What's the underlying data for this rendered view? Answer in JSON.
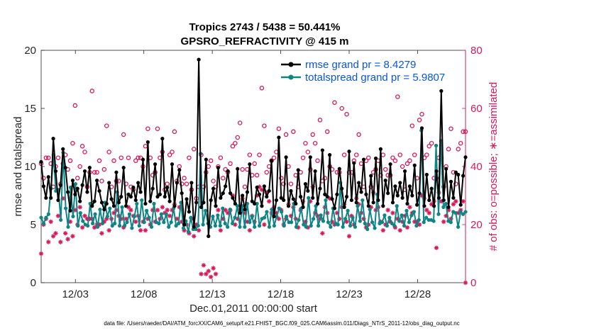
{
  "chart_data": {
    "type": "line",
    "title": "Tropics 2743 / 5438 = 50.441%",
    "subtitle": "GPSRO_REFRACTIVITY @ 415 m",
    "xlabel": "Dec.01,2011 00:00:00 start",
    "ylabel": "rmse and totalspread",
    "ylabel_right": "# of obs: o=possible; ∗=assimilated",
    "footer": "data file: /Users/raeder/DAI/ATM_forcXX/CAM6_setup/f.e21.FHIST_BGC.f09_025.CAM6assim.011/Diags_NTrS_2011-12/obs_diag_output.nc",
    "x_start_day": 0.5,
    "x_end_day": 31.5,
    "xlim": [
      0.5,
      31.5
    ],
    "ylim": [
      0,
      20
    ],
    "ylim_right": [
      0,
      80
    ],
    "x_ticks": [
      {
        "day": 3,
        "label": "12/03"
      },
      {
        "day": 8,
        "label": "12/08"
      },
      {
        "day": 13,
        "label": "12/13"
      },
      {
        "day": 18,
        "label": "12/18"
      },
      {
        "day": 23,
        "label": "12/23"
      },
      {
        "day": 28,
        "label": "12/28"
      }
    ],
    "y_ticks": [
      {
        "value": 0,
        "label": "0"
      },
      {
        "value": 5,
        "label": "5"
      },
      {
        "value": 10,
        "label": "10"
      },
      {
        "value": 15,
        "label": "15"
      },
      {
        "value": 20,
        "label": "20"
      }
    ],
    "y_ticks_right": [
      {
        "value": 0,
        "label": "0"
      },
      {
        "value": 20,
        "label": "20"
      },
      {
        "value": 40,
        "label": "40"
      },
      {
        "value": 60,
        "label": "60"
      },
      {
        "value": 80,
        "label": "80"
      }
    ],
    "legend": {
      "position": "top-right",
      "entries": [
        "rmse grand pr = 8.4279",
        "totalspread grand pr = 5.9807"
      ]
    },
    "colors": {
      "rmse": "#000000",
      "spread": "#0d8585",
      "obs": "#d6195b",
      "legend_text": "#0a55e0"
    },
    "series": [
      {
        "name": "rmse",
        "axis": "left",
        "values": [
          10.4,
          8.3,
          7.3,
          9.1,
          7.3,
          12.4,
          9.6,
          7.1,
          8.4,
          11.5,
          9.9,
          7.8,
          6.2,
          8.8,
          7.6,
          8.1,
          7.0,
          8.4,
          9.6,
          7.8,
          9.9,
          6.6,
          7.0,
          8.8,
          7.9,
          6.9,
          6.3,
          6.8,
          8.6,
          7.2,
          6.6,
          9.5,
          6.9,
          7.4,
          9.9,
          6.6,
          7.6,
          7.4,
          8.2,
          7.1,
          8.6,
          7.8,
          10.6,
          6.8,
          12.1,
          7.0,
          8.1,
          10.2,
          7.4,
          7.6,
          12.4,
          7.4,
          8.2,
          7.0,
          10.2,
          6.6,
          8.6,
          9.7,
          7.7,
          5.0,
          7.2,
          6.1,
          8.6,
          4.8,
          6.9,
          19.2,
          6.5,
          6.9,
          10.6,
          4.0,
          7.1,
          8.1,
          6.6,
          9.9,
          7.3,
          7.7,
          8.3,
          9.6,
          7.7,
          7.3,
          6.8,
          9.8,
          6.0,
          7.5,
          6.3,
          7.8,
          10.2,
          7.0,
          6.8,
          8.2,
          7.6,
          6.6,
          8.3,
          7.4,
          7.9,
          10.5,
          5.7,
          7.1,
          12.5,
          7.3,
          7.1,
          10.8,
          6.6,
          7.9,
          7.2,
          6.8,
          9.7,
          7.4,
          6.5,
          8.5,
          7.9,
          10.8,
          7.3,
          9.6,
          6.8,
          8.1,
          11.4,
          7.6,
          7.4,
          11.0,
          7.2,
          6.4,
          7.6,
          9.8,
          8.1,
          6.5,
          7.4,
          11.3,
          7.1,
          10.3,
          6.9,
          8.6,
          7.8,
          10.6,
          7.6,
          6.6,
          9.2,
          6.9,
          10.7,
          7.1,
          11.5,
          6.6,
          8.8,
          7.7,
          10.2,
          6.9,
          8.3,
          7.5,
          8.6,
          7.3,
          9.6,
          6.8,
          8.3,
          7.5,
          10.1,
          6.7,
          7.7,
          13.3,
          6.6,
          9.3,
          7.1,
          8.1,
          6.6,
          9.6,
          7.3,
          16.5,
          7.1,
          9.8,
          6.5,
          8.7,
          7.3,
          9.5,
          9.3,
          6.7,
          9.2,
          10.8
        ]
      },
      {
        "name": "totalspread",
        "axis": "left",
        "values": [
          5.6,
          5.1,
          5.6,
          5.9,
          8.1,
          11.0,
          7.9,
          8.0,
          5.4,
          11.2,
          6.4,
          4.8,
          8.2,
          5.7,
          8.5,
          4.9,
          6.0,
          5.3,
          5.0,
          4.9,
          6.8,
          5.1,
          5.9,
          4.8,
          6.3,
          5.1,
          6.9,
          5.7,
          6.4,
          4.9,
          5.1,
          7.8,
          4.9,
          6.5,
          4.9,
          5.2,
          5.9,
          4.7,
          5.7,
          6.8,
          4.9,
          7.1,
          5.2,
          6.2,
          5.6,
          4.8,
          6.8,
          5.2,
          5.1,
          5.9,
          5.2,
          5.9,
          4.8,
          5.2,
          6.4,
          4.9,
          5.1,
          6.9,
          4.7,
          5.3,
          4.4,
          5.6,
          4.6,
          4.6,
          4.9,
          11.1,
          5.0,
          6.2,
          5.1,
          4.8,
          5.7,
          4.9,
          5.8,
          4.9,
          6.4,
          5.1,
          4.8,
          6.3,
          5.1,
          5.6,
          6.6,
          4.8,
          6.6,
          4.8,
          6.8,
          5.2,
          5.7,
          4.8,
          6.8,
          4.9,
          5.5,
          5.6,
          6.1,
          4.8,
          6.3,
          4.9,
          5.7,
          6.4,
          6.1,
          4.9,
          5.7,
          5.2,
          5.2,
          6.8,
          4.8,
          5.4,
          6.4,
          5.0,
          4.8,
          7.3,
          4.9,
          5.5,
          6.6,
          4.9,
          5.8,
          5.3,
          7.1,
          5.2,
          4.8,
          6.4,
          5.1,
          5.0,
          8.6,
          4.8,
          5.5,
          6.2,
          4.9,
          5.6,
          4.8,
          6.6,
          5.3,
          7.1,
          5.1,
          4.6,
          6.3,
          5.2,
          4.7,
          7.6,
          5.1,
          5.2,
          5.8,
          4.9,
          5.6,
          5.1,
          4.9,
          6.6,
          5.3,
          5.8,
          4.9,
          6.2,
          5.2,
          5.8,
          6.1,
          4.9,
          5.4,
          13.1,
          5.2,
          5.6,
          5.4,
          5.4,
          5.3,
          11.8,
          5.9,
          12.2,
          6.5,
          6.8,
          5.3,
          5.2,
          6.1,
          6.0,
          4.8,
          6.1,
          5.9,
          6.1
        ]
      },
      {
        "name": "obs possible",
        "axis": "right",
        "marker": "o",
        "values": [
          41,
          36,
          43,
          43,
          41,
          33,
          40,
          43,
          34,
          41,
          44,
          39,
          42,
          48,
          61,
          36,
          40,
          47,
          45,
          33,
          38,
          66,
          38,
          38,
          42,
          35,
          39,
          54,
          45,
          33,
          42,
          35,
          35,
          43,
          51,
          34,
          43,
          33,
          32,
          42,
          43,
          43,
          40,
          47,
          53,
          43,
          37,
          38,
          53,
          43,
          45,
          32,
          34,
          44,
          45,
          52,
          35,
          40,
          34,
          36,
          34,
          43,
          32,
          46,
          29,
          33,
          44,
          33,
          38,
          40,
          42,
          35,
          33,
          40,
          43,
          36,
          39,
          38,
          41,
          47,
          48,
          50,
          55,
          39,
          33,
          39,
          44,
          37,
          41,
          37,
          44,
          67,
          54,
          38,
          40,
          42,
          43,
          45,
          53,
          36,
          34,
          51,
          40,
          34,
          52,
          37,
          33,
          38,
          43,
          48,
          45,
          39,
          51,
          48,
          42,
          56,
          35,
          36,
          52,
          40,
          39,
          62,
          38,
          38,
          60,
          44,
          58,
          38,
          38,
          42,
          44,
          51,
          41,
          33,
          42,
          43,
          33,
          38,
          39,
          42,
          37,
          44,
          39,
          37,
          37,
          43,
          42,
          64,
          44,
          40,
          32,
          41,
          42,
          54,
          44,
          36,
          56,
          58,
          43,
          44,
          47,
          48,
          36,
          36,
          43,
          43,
          33,
          40,
          46,
          53,
          38,
          34,
          46,
          48,
          52,
          52
        ]
      },
      {
        "name": "obs assimilated",
        "axis": "right",
        "marker": "*",
        "values": [
          10,
          20,
          22,
          14,
          21,
          16,
          17,
          23,
          14,
          29,
          17,
          15,
          21,
          16,
          25,
          20,
          26,
          19,
          23,
          22,
          22,
          22,
          19,
          20,
          20,
          17,
          21,
          22,
          18,
          22,
          24,
          25,
          23,
          22,
          19,
          22,
          26,
          25,
          23,
          21,
          23,
          18,
          21,
          18,
          22,
          20,
          25,
          21,
          25,
          22,
          26,
          24,
          25,
          23,
          25,
          27,
          22,
          26,
          21,
          18,
          20,
          17,
          22,
          16,
          20,
          18,
          3,
          6,
          3,
          4,
          2,
          5,
          3,
          25,
          18,
          22,
          25,
          24,
          25,
          30,
          20,
          22,
          25,
          29,
          24,
          21,
          18,
          23,
          21,
          30,
          33,
          32,
          20,
          31,
          28,
          24,
          26,
          24,
          22,
          25,
          20,
          22,
          27,
          23,
          26,
          22,
          19,
          25,
          28,
          21,
          19,
          28,
          33,
          24,
          23,
          22,
          17,
          26,
          24,
          29,
          21,
          20,
          24,
          22,
          26,
          27,
          21,
          16,
          23,
          20,
          29,
          27,
          24,
          22,
          19,
          20,
          26,
          31,
          25,
          26,
          21,
          18,
          20,
          25,
          21,
          24,
          19,
          22,
          18,
          21,
          23,
          19,
          26,
          24,
          21,
          21,
          20,
          30,
          29,
          25,
          24,
          27,
          28,
          12,
          31,
          28,
          21,
          23,
          25,
          22,
          27,
          28,
          24,
          25,
          28,
          0
        ]
      }
    ]
  }
}
